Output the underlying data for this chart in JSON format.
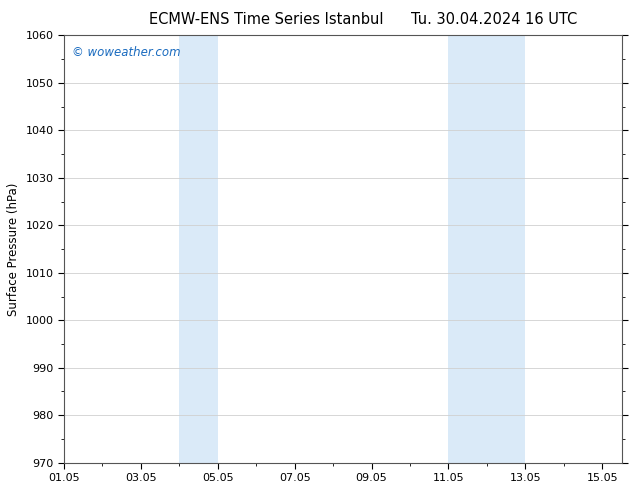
{
  "title_left": "ECMW-ENS Time Series Istanbul",
  "title_right": "Tu. 30.04.2024 16 UTC",
  "ylabel": "Surface Pressure (hPa)",
  "xlim": [
    1.0,
    15.5
  ],
  "ylim": [
    970,
    1060
  ],
  "yticks": [
    970,
    980,
    990,
    1000,
    1010,
    1020,
    1030,
    1040,
    1050,
    1060
  ],
  "xtick_labels": [
    "01.05",
    "03.05",
    "05.05",
    "07.05",
    "09.05",
    "11.05",
    "13.05",
    "15.05"
  ],
  "xtick_positions": [
    1.0,
    3.0,
    5.0,
    7.0,
    9.0,
    11.0,
    13.0,
    15.0
  ],
  "shaded_regions": [
    {
      "xmin": 4.0,
      "xmax": 5.0
    },
    {
      "xmin": 11.0,
      "xmax": 13.0
    }
  ],
  "shade_color": "#daeaf8",
  "watermark": "© woweather.com",
  "watermark_color": "#1a6bbf",
  "bg_color": "#ffffff",
  "grid_color": "#d0d0d0",
  "border_color": "#555555",
  "title_fontsize": 10.5,
  "label_fontsize": 8.5,
  "tick_fontsize": 8
}
